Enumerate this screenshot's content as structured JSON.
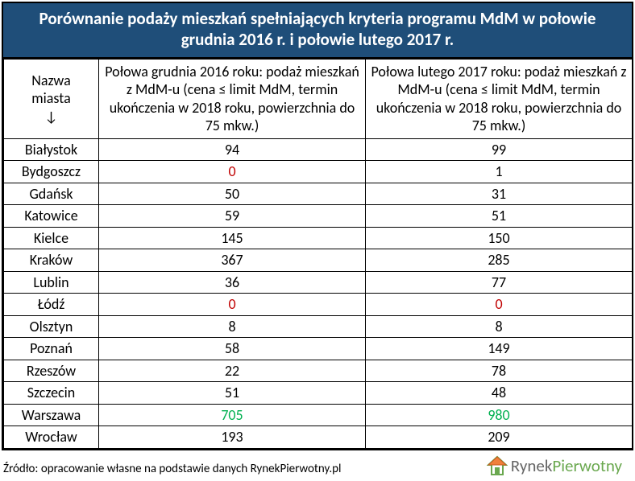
{
  "title": "Porównanie podaży mieszkań spełniających kryteria programu MdM w połowie grudnia 2016 r. i połowie lutego 2017 r.",
  "columns": {
    "city_line1": "Nazwa",
    "city_line2": "miasta",
    "city_arrow": "↓",
    "dec2016": "Połowa grudnia 2016 roku: podaż mieszkań z MdM-u (cena ≤ limit MdM, termin ukończenia w 2018 roku, powierzchnia do 75 mkw.)",
    "feb2017": "Połowa lutego 2017 roku: podaż mieszkań z MdM-u (cena ≤ limit MdM, termin ukończenia w 2018 roku, powierzchnia do 75 mkw.)"
  },
  "colors": {
    "header_bg": "#1f4e79",
    "header_text": "#ffffff",
    "border": "#000000",
    "normal_text": "#000000",
    "zero_text": "#c00000",
    "highlight_text": "#00b050",
    "logo_gray": "#666666",
    "logo_green": "#6aa84f"
  },
  "rows": [
    {
      "city": "Białystok",
      "v1": "94",
      "c1": "#000000",
      "v2": "99",
      "c2": "#000000"
    },
    {
      "city": "Bydgoszcz",
      "v1": "0",
      "c1": "#c00000",
      "v2": "1",
      "c2": "#000000"
    },
    {
      "city": "Gdańsk",
      "v1": "50",
      "c1": "#000000",
      "v2": "31",
      "c2": "#000000"
    },
    {
      "city": "Katowice",
      "v1": "59",
      "c1": "#000000",
      "v2": "51",
      "c2": "#000000"
    },
    {
      "city": "Kielce",
      "v1": "145",
      "c1": "#000000",
      "v2": "150",
      "c2": "#000000"
    },
    {
      "city": "Kraków",
      "v1": "367",
      "c1": "#000000",
      "v2": "285",
      "c2": "#000000"
    },
    {
      "city": "Lublin",
      "v1": "36",
      "c1": "#000000",
      "v2": "77",
      "c2": "#000000"
    },
    {
      "city": "Łódź",
      "v1": "0",
      "c1": "#c00000",
      "v2": "0",
      "c2": "#c00000"
    },
    {
      "city": "Olsztyn",
      "v1": "8",
      "c1": "#000000",
      "v2": "8",
      "c2": "#000000"
    },
    {
      "city": "Poznań",
      "v1": "58",
      "c1": "#000000",
      "v2": "149",
      "c2": "#000000"
    },
    {
      "city": "Rzeszów",
      "v1": "22",
      "c1": "#000000",
      "v2": "78",
      "c2": "#000000"
    },
    {
      "city": "Szczecin",
      "v1": "51",
      "c1": "#000000",
      "v2": "48",
      "c2": "#000000"
    },
    {
      "city": "Warszawa",
      "v1": "705",
      "c1": "#00b050",
      "v2": "980",
      "c2": "#00b050"
    },
    {
      "city": "Wrocław",
      "v1": "193",
      "c1": "#000000",
      "v2": "209",
      "c2": "#000000"
    }
  ],
  "source": "Źródło: opracowanie własne na podstawie danych RynekPierwotny.pl",
  "logo": {
    "part1": "Rynek",
    "part2": "Pierwotny"
  }
}
